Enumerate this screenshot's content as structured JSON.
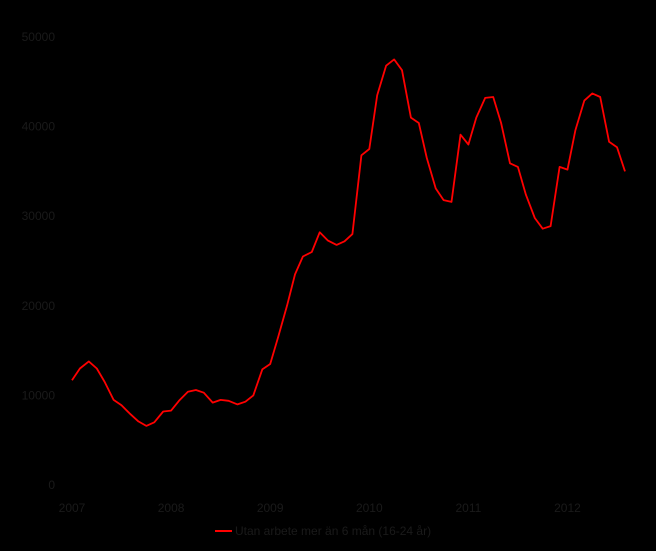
{
  "chart_data": {
    "type": "line",
    "title": "",
    "xlabel": "",
    "ylabel": "",
    "ylim": [
      0,
      50000
    ],
    "xlim": [
      2007,
      2012.6
    ],
    "y_ticks": [
      "0",
      "10000",
      "20000",
      "30000",
      "40000",
      "50000"
    ],
    "x_ticks": [
      "2007",
      "2008",
      "2009",
      "2010",
      "2011",
      "2012"
    ],
    "grid": false,
    "legend_position": "bottom",
    "series": [
      {
        "name": "Utan arbete mer än 6 mån (16-24 år)",
        "color": "#ff0000",
        "x": [
          2007.0,
          2007.08,
          2007.17,
          2007.25,
          2007.33,
          2007.42,
          2007.5,
          2007.58,
          2007.67,
          2007.75,
          2007.83,
          2007.92,
          2008.0,
          2008.08,
          2008.17,
          2008.25,
          2008.33,
          2008.42,
          2008.5,
          2008.58,
          2008.67,
          2008.75,
          2008.83,
          2008.92,
          2009.0,
          2009.08,
          2009.17,
          2009.25,
          2009.33,
          2009.42,
          2009.5,
          2009.58,
          2009.67,
          2009.75,
          2009.83,
          2009.92,
          2010.0,
          2010.08,
          2010.17,
          2010.25,
          2010.33,
          2010.42,
          2010.5,
          2010.58,
          2010.67,
          2010.75,
          2010.83,
          2010.92,
          2011.0,
          2011.08,
          2011.17,
          2011.25,
          2011.33,
          2011.42,
          2011.5,
          2011.58,
          2011.67,
          2011.75,
          2011.83,
          2011.92,
          2012.0,
          2012.08,
          2012.17,
          2012.25,
          2012.33,
          2012.42,
          2012.5,
          2012.58
        ],
        "values": [
          11700,
          13000,
          13800,
          13000,
          11500,
          9500,
          8900,
          8000,
          7100,
          6600,
          7000,
          8200,
          8300,
          9400,
          10400,
          10600,
          10300,
          9200,
          9500,
          9400,
          9000,
          9300,
          10000,
          12900,
          13500,
          16500,
          20000,
          23500,
          25500,
          26000,
          28200,
          27300,
          26800,
          27200,
          28000,
          36800,
          37500,
          43500,
          46800,
          47500,
          46300,
          41000,
          40400,
          36500,
          33100,
          31800,
          31600,
          39100,
          38000,
          41000,
          43200,
          43300,
          40400,
          35900,
          35500,
          32400,
          29800,
          28600,
          28900,
          35500,
          35200,
          39600,
          42900,
          43700,
          43300,
          38300,
          37700,
          35000
        ]
      }
    ]
  }
}
